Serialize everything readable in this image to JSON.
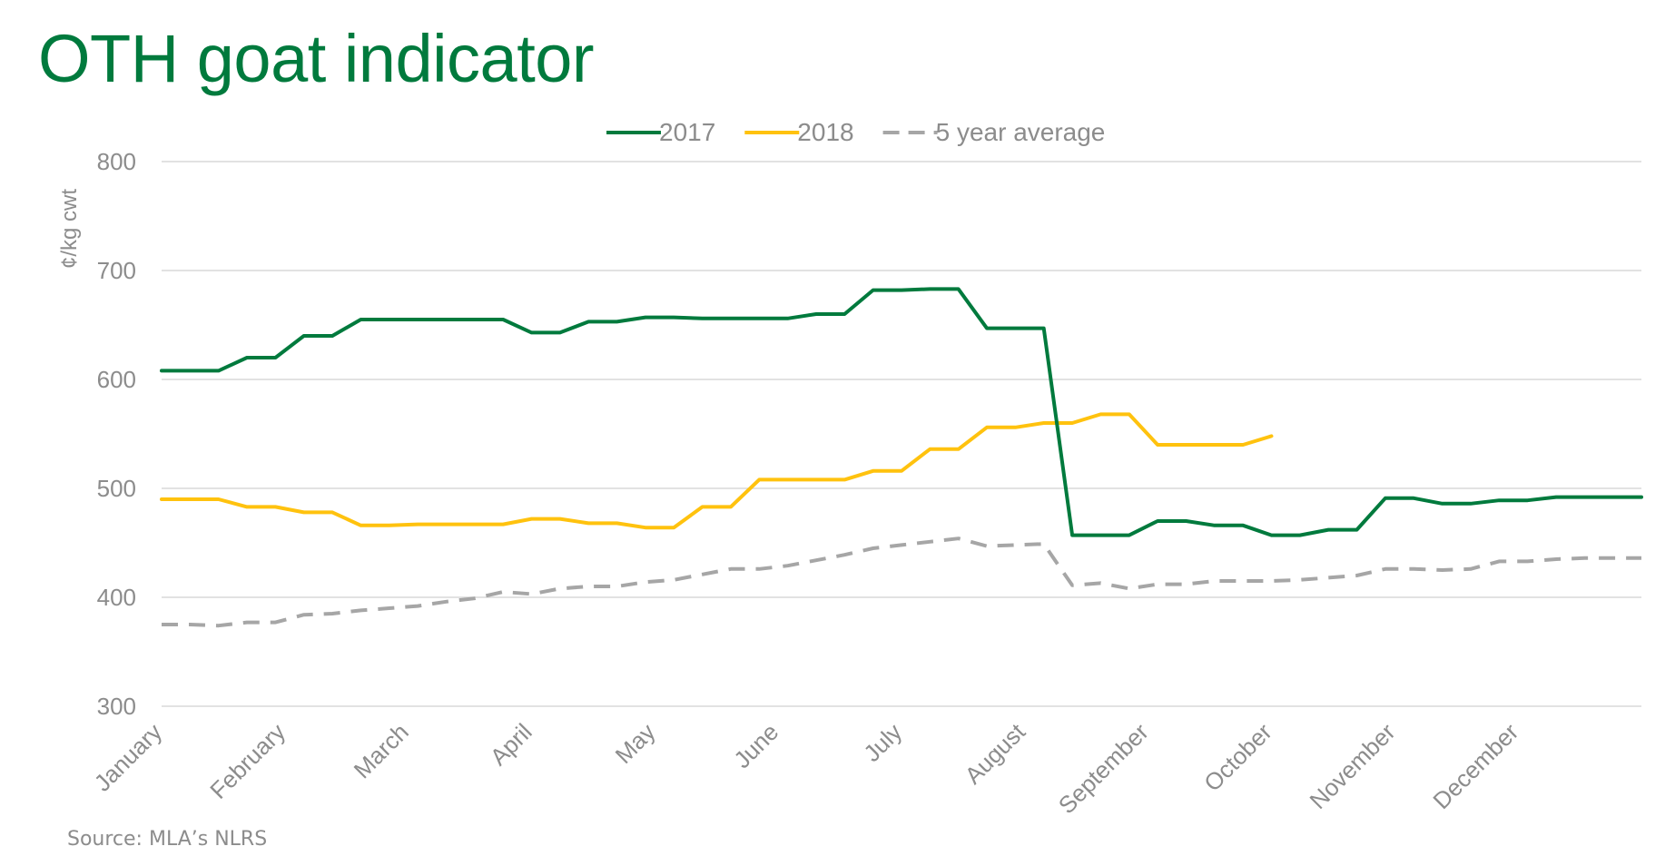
{
  "title": "OTH goat indicator",
  "source": "Source: MLA’s NLRS",
  "colors": {
    "title": "#007a3d",
    "axis_text": "#8c8c8c",
    "grid": "#d9d9d9"
  },
  "chart_data": {
    "type": "line",
    "title": "",
    "ylabel": "¢/kg cwt",
    "xlabel": "",
    "ylim": [
      300,
      800
    ],
    "yticks": [
      300,
      400,
      500,
      600,
      700,
      800
    ],
    "grid": "horizontal",
    "legend_position": "top",
    "x_tick_labels": [
      "January",
      "February",
      "March",
      "April",
      "May",
      "June",
      "July",
      "August",
      "September",
      "October",
      "November",
      "December"
    ],
    "n_points": 53,
    "series": [
      {
        "name": "2017",
        "color": "#007a3d",
        "style": "solid",
        "values": [
          608,
          608,
          608,
          620,
          620,
          640,
          640,
          655,
          655,
          655,
          655,
          655,
          655,
          643,
          643,
          653,
          653,
          657,
          657,
          656,
          656,
          656,
          656,
          660,
          660,
          682,
          682,
          683,
          683,
          647,
          647,
          647,
          457,
          457,
          457,
          470,
          470,
          466,
          466,
          457,
          457,
          462,
          462,
          491,
          491,
          486,
          486,
          489,
          489,
          492,
          492,
          492,
          492
        ]
      },
      {
        "name": "2018",
        "color": "#ffc20e",
        "style": "solid",
        "values": [
          490,
          490,
          490,
          483,
          483,
          478,
          478,
          466,
          466,
          467,
          467,
          467,
          467,
          472,
          472,
          468,
          468,
          464,
          464,
          483,
          483,
          508,
          508,
          508,
          508,
          516,
          516,
          536,
          536,
          556,
          556,
          560,
          560,
          568,
          568,
          540,
          540,
          540,
          540,
          548
        ]
      },
      {
        "name": "5 year average",
        "color": "#a6a6a6",
        "style": "dashed",
        "values": [
          375,
          375,
          374,
          377,
          377,
          384,
          385,
          388,
          390,
          392,
          396,
          399,
          405,
          403,
          408,
          410,
          410,
          414,
          416,
          421,
          426,
          426,
          429,
          434,
          439,
          445,
          448,
          451,
          454,
          447,
          448,
          449,
          411,
          413,
          408,
          412,
          412,
          415,
          415,
          415,
          416,
          418,
          420,
          426,
          426,
          425,
          426,
          433,
          433,
          435,
          436,
          436,
          436
        ]
      }
    ]
  }
}
